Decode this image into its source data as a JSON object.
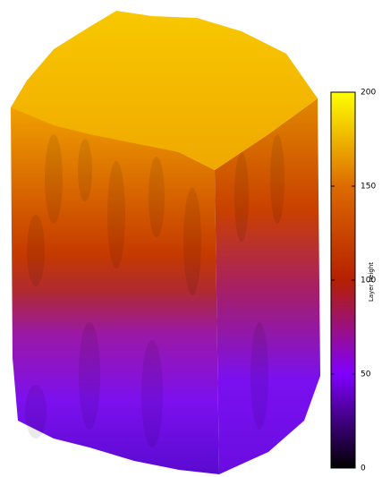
{
  "chart_data": {
    "type": "surface",
    "colorbar": {
      "label": "Layer height",
      "clim": [
        0,
        200
      ],
      "ticks": [
        0,
        50,
        100,
        150,
        200
      ],
      "colormap": [
        "#000000",
        "#8000ff",
        "#b52000",
        "#dd6b00",
        "#ffff00"
      ]
    }
  }
}
